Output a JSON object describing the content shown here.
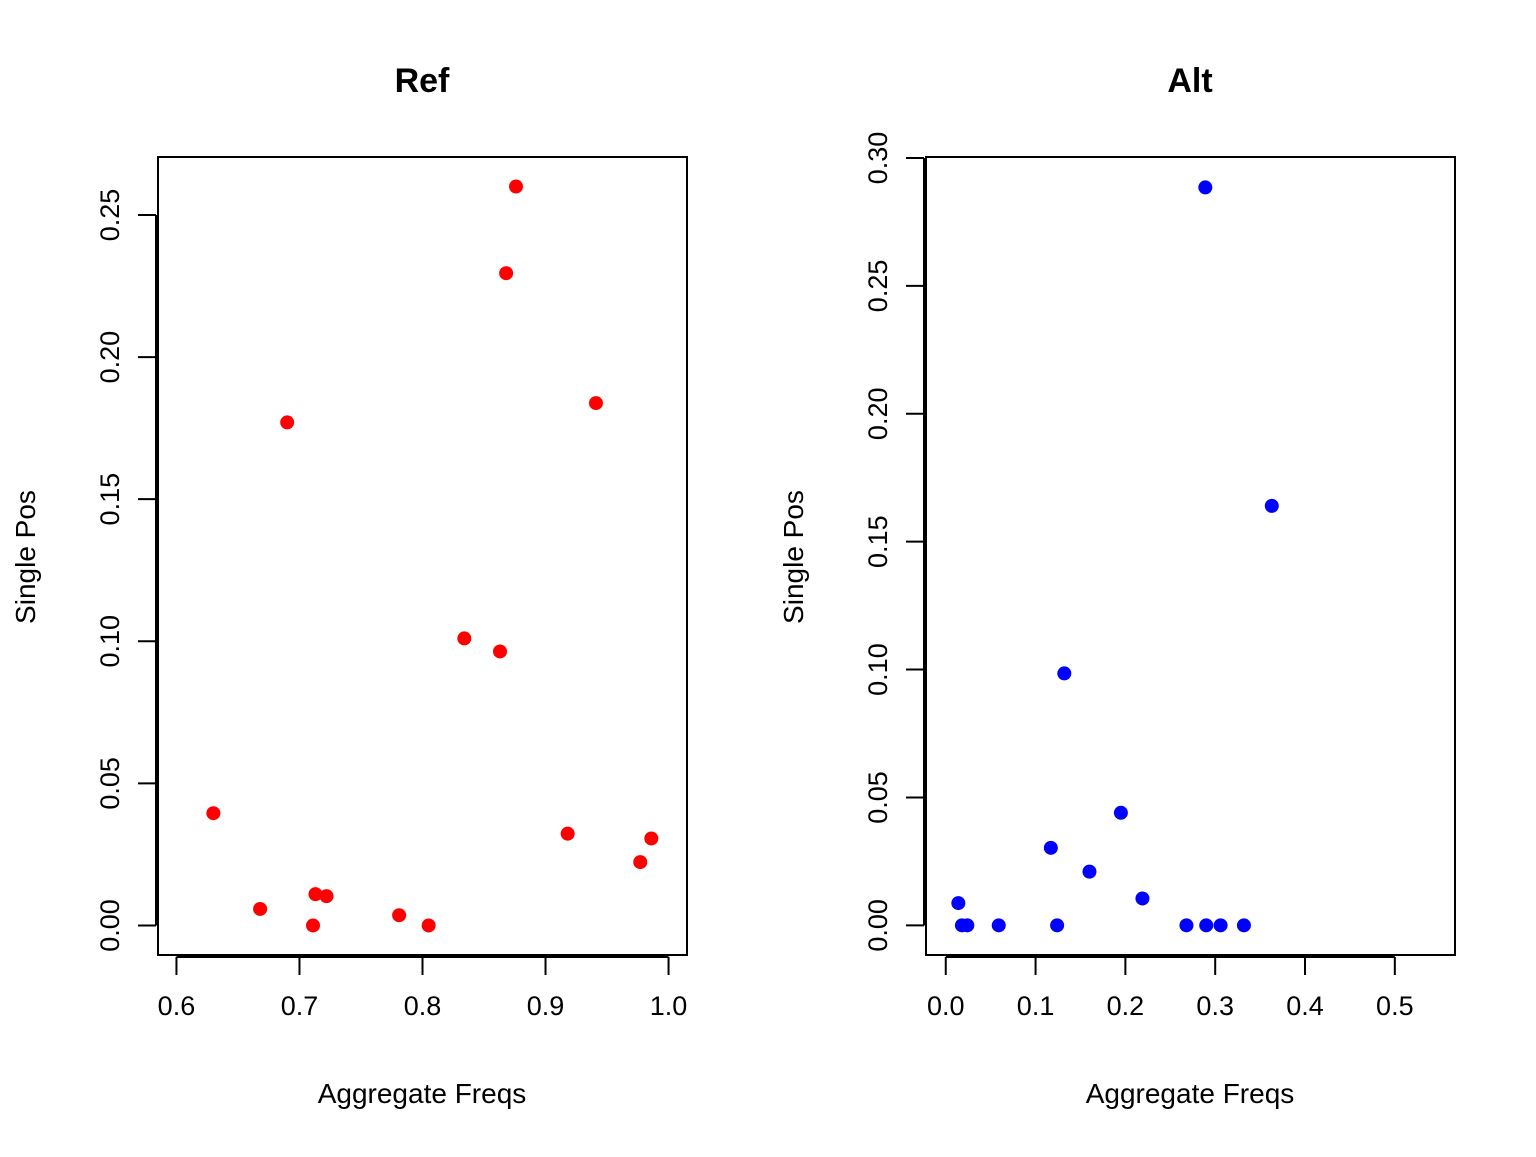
{
  "chart_data": [
    {
      "type": "scatter",
      "title": "Ref",
      "xlabel": "Aggregate Freqs",
      "ylabel": "Single Pos",
      "xlim": [
        0.585,
        1.015
      ],
      "ylim": [
        -0.0104,
        0.2704
      ],
      "xticks": [
        0.6,
        0.7,
        0.8,
        0.9,
        1.0
      ],
      "xtick_labels": [
        "0.6",
        "0.7",
        "0.8",
        "0.9",
        "1.0"
      ],
      "yticks": [
        0.0,
        0.05,
        0.1,
        0.15,
        0.2,
        0.25
      ],
      "ytick_labels": [
        "0.00",
        "0.05",
        "0.10",
        "0.15",
        "0.20",
        "0.25"
      ],
      "grid": false,
      "color": "#ff0000",
      "series": [
        {
          "x": [
            0.63,
            0.668,
            0.69,
            0.711,
            0.713,
            0.722,
            0.781,
            0.805,
            0.834,
            0.863,
            0.868,
            0.876,
            0.918,
            0.941,
            0.977,
            0.986
          ],
          "y": [
            0.0395,
            0.0058,
            0.177,
            0.0,
            0.011,
            0.0103,
            0.0036,
            0.0,
            0.101,
            0.0964,
            0.2295,
            0.26,
            0.0323,
            0.1838,
            0.0223,
            0.0306
          ]
        }
      ]
    },
    {
      "type": "scatter",
      "title": "Alt",
      "xlabel": "Aggregate Freqs",
      "ylabel": "Single Pos",
      "xlim": [
        -0.022,
        0.567
      ],
      "ylim": [
        -0.0116,
        0.3004
      ],
      "xticks": [
        0.0,
        0.1,
        0.2,
        0.3,
        0.4,
        0.5
      ],
      "xtick_labels": [
        "0.0",
        "0.1",
        "0.2",
        "0.3",
        "0.4",
        "0.5"
      ],
      "yticks": [
        0.0,
        0.05,
        0.1,
        0.15,
        0.2,
        0.25,
        0.3
      ],
      "ytick_labels": [
        "0.00",
        "0.05",
        "0.10",
        "0.15",
        "0.20",
        "0.25",
        "0.30"
      ],
      "grid": false,
      "color": "#0000ff",
      "series": [
        {
          "x": [
            0.014,
            0.018,
            0.024,
            0.059,
            0.117,
            0.124,
            0.132,
            0.16,
            0.195,
            0.219,
            0.268,
            0.289,
            0.29,
            0.306,
            0.332,
            0.363
          ],
          "y": [
            0.0087,
            0.0,
            0.0,
            0.0,
            0.0303,
            0.0,
            0.0985,
            0.021,
            0.044,
            0.0105,
            0.0,
            0.2885,
            0.0,
            0.0,
            0.0,
            0.164
          ]
        }
      ]
    }
  ]
}
